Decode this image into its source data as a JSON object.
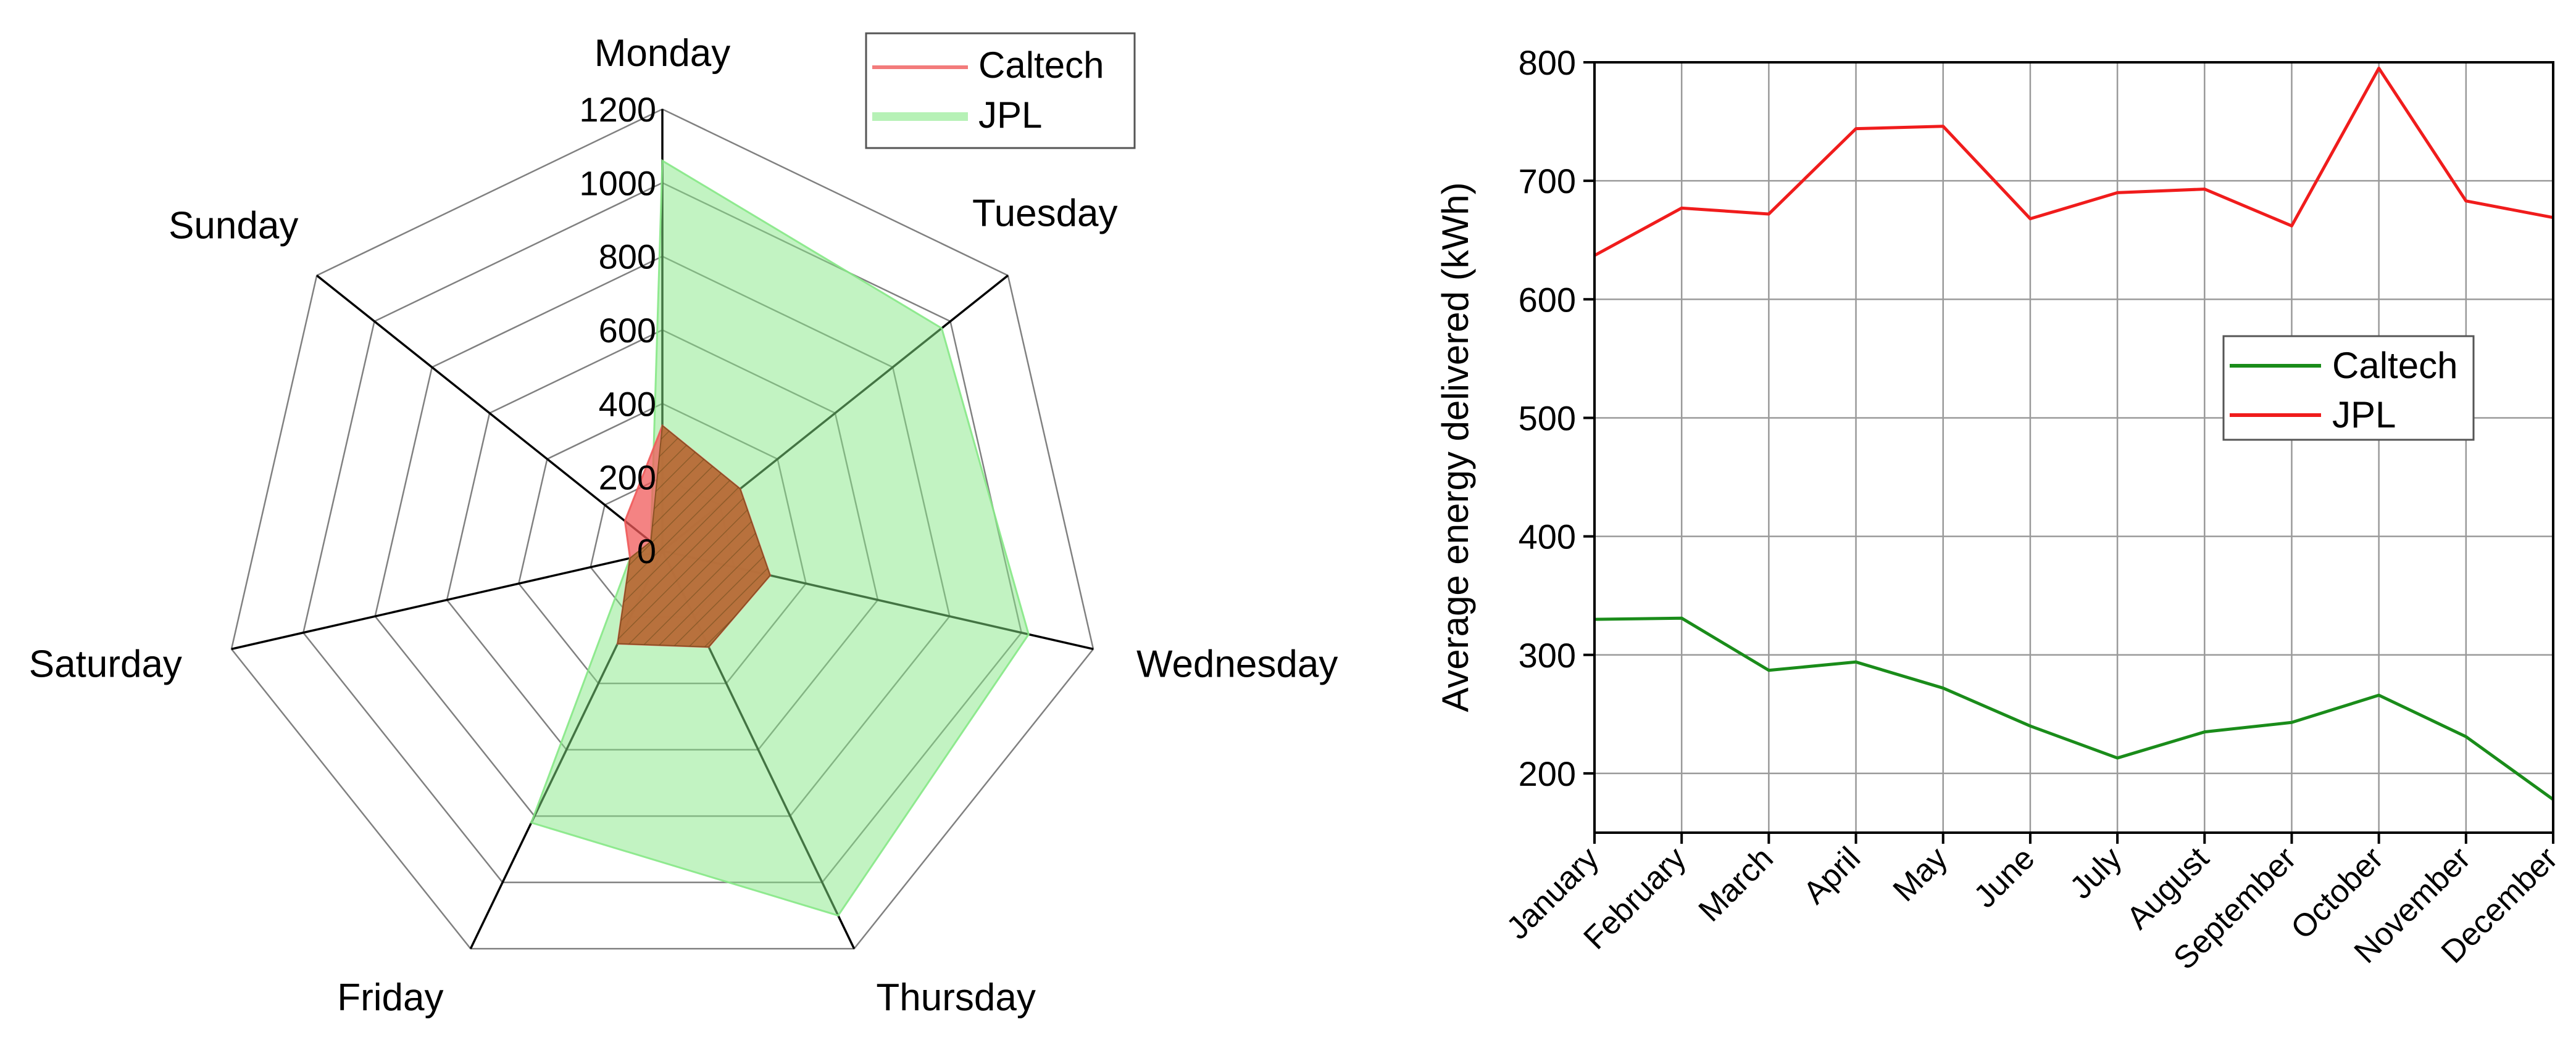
{
  "chart_data": [
    {
      "type": "radar",
      "title": "",
      "categories": [
        "Monday",
        "Tuesday",
        "Wednesday",
        "Thursday",
        "Friday",
        "Saturday",
        "Sunday"
      ],
      "rlim": [
        0,
        1200
      ],
      "rticks": [
        "0",
        "200",
        "400",
        "600",
        "800",
        "1000",
        "1200"
      ],
      "rtick_values": [
        0,
        200,
        400,
        600,
        800,
        1000,
        1200
      ],
      "legend_position": "top-right",
      "series": [
        {
          "name": "Caltech",
          "color": "#f05a5a",
          "values": [
            340,
            270,
            300,
            290,
            280,
            90,
            130
          ]
        },
        {
          "name": "JPL",
          "color": "#86e886",
          "values": [
            1060,
            970,
            1020,
            1100,
            820,
            90,
            40
          ]
        }
      ]
    },
    {
      "type": "line",
      "title": "",
      "categories": [
        "January",
        "February",
        "March",
        "April",
        "May",
        "June",
        "July",
        "August",
        "September",
        "October",
        "November",
        "December"
      ],
      "xlabel": "",
      "ylabel": "Average energy delivered (kWh)",
      "ylim": [
        150,
        800
      ],
      "yticks": [
        "200",
        "300",
        "400",
        "500",
        "600",
        "700",
        "800"
      ],
      "ytick_values": [
        200,
        300,
        400,
        500,
        600,
        700,
        800
      ],
      "grid": true,
      "legend_position": "center-right",
      "series": [
        {
          "name": "Caltech",
          "color": "#1a8c1a",
          "values": [
            330,
            331,
            287,
            294,
            272,
            240,
            213,
            235,
            243,
            266,
            231,
            178
          ]
        },
        {
          "name": "JPL",
          "color": "#f01c1c",
          "values": [
            637,
            677,
            672,
            744,
            746,
            668,
            690,
            693,
            662,
            795,
            683,
            669
          ]
        }
      ]
    }
  ]
}
